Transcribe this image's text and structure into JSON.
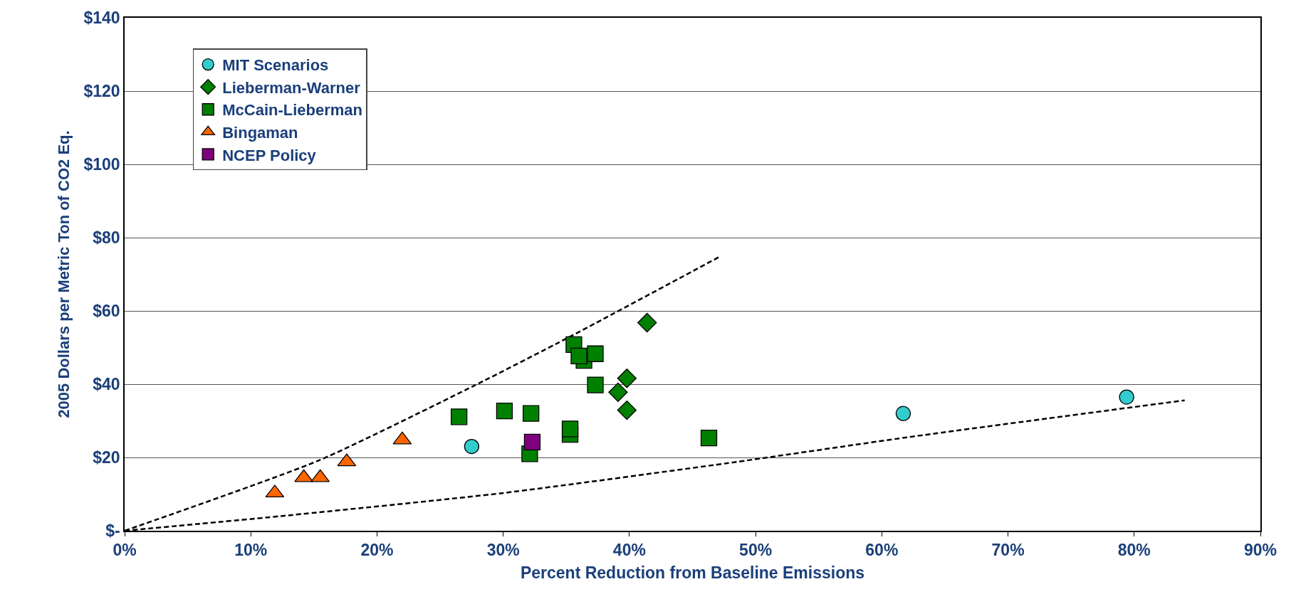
{
  "chart_data": {
    "type": "scatter",
    "xlabel": "Percent Reduction from Baseline Emissions",
    "ylabel": "2005 Dollars per Metric Ton of CO2 Eq.",
    "xlim": [
      0,
      90
    ],
    "xticks": [
      {
        "value": 0,
        "label": "0%"
      },
      {
        "value": 10,
        "label": "10%"
      },
      {
        "value": 20,
        "label": "20%"
      },
      {
        "value": 30,
        "label": "30%"
      },
      {
        "value": 40,
        "label": "40%"
      },
      {
        "value": 50,
        "label": "50%"
      },
      {
        "value": 60,
        "label": "60%"
      },
      {
        "value": 70,
        "label": "70%"
      },
      {
        "value": 80,
        "label": "80%"
      },
      {
        "value": 90,
        "label": "90%"
      }
    ],
    "ylim": [
      0,
      140
    ],
    "yticks": [
      {
        "value": 0,
        "label": "$-"
      },
      {
        "value": 20,
        "label": "$20"
      },
      {
        "value": 40,
        "label": "$40"
      },
      {
        "value": 60,
        "label": "$60"
      },
      {
        "value": 80,
        "label": "$80"
      },
      {
        "value": 100,
        "label": "$100"
      },
      {
        "value": 120,
        "label": "$120"
      },
      {
        "value": 140,
        "label": "$140"
      }
    ],
    "grid": "y",
    "legend": "top left",
    "series": [
      {
        "type": "line",
        "color": "#000000",
        "line_style": "dashed",
        "marker": "none",
        "x": [
          0,
          15.4,
          27.7,
          35.2,
          47.1
        ],
        "values": [
          0,
          19.2,
          39.6,
          52.8,
          74.7
        ]
      },
      {
        "type": "line",
        "color": "#000000",
        "line_style": "dashed",
        "marker": "none",
        "x": [
          0,
          12.4,
          30,
          48.5,
          62,
          84
        ],
        "values": [
          0,
          4,
          10.3,
          18.8,
          25.5,
          35.6
        ]
      },
      {
        "name": "MIT Scenarios",
        "color": "#33cccc",
        "marker": "circle",
        "x": [
          27.5,
          61.7,
          79.4
        ],
        "values": [
          23,
          32,
          36.5
        ]
      },
      {
        "name": "Lieberman-Warner",
        "color": "#008000",
        "marker": "diamond",
        "x": [
          41.4,
          39.8,
          39.1,
          39.8
        ],
        "values": [
          56.8,
          41.6,
          37.8,
          32.9
        ]
      },
      {
        "name": "McCain-Lieberman",
        "color": "#008000",
        "marker": "square",
        "x": [
          35.6,
          36.4,
          37.3,
          36,
          37.3,
          26.5,
          30.1,
          32.2,
          35.3,
          35.3,
          32.1,
          46.3
        ],
        "values": [
          50.8,
          46.5,
          48.3,
          47.7,
          39.8,
          31.1,
          32.7,
          32,
          26.3,
          27.8,
          21,
          25.3
        ]
      },
      {
        "name": "Bingaman",
        "color": "#ff6600",
        "marker": "triangle",
        "x": [
          11.9,
          14.2,
          15.5,
          17.6,
          22
        ],
        "values": [
          10.3,
          14.5,
          14.5,
          18.8,
          24.8
        ]
      },
      {
        "name": "NCEP Policy",
        "color": "#800080",
        "marker": "square",
        "x": [
          32.3
        ],
        "values": [
          24.2
        ]
      }
    ]
  }
}
